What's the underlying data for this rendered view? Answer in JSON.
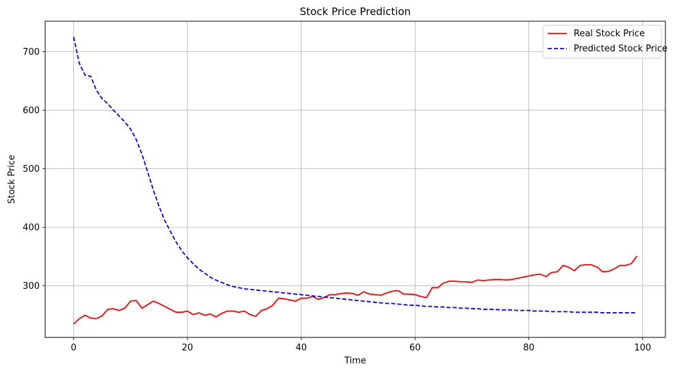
{
  "chart_data": {
    "type": "line",
    "title": "Stock Price Prediction",
    "xlabel": "Time",
    "ylabel": "Stock Price",
    "xlim": [
      -5.0,
      104.0
    ],
    "ylim": [
      212,
      752
    ],
    "xticks": [
      0,
      20,
      40,
      60,
      80,
      100
    ],
    "yticks": [
      300,
      400,
      500,
      600,
      700
    ],
    "grid": true,
    "legend_position": "top-right",
    "x": [
      0,
      1,
      2,
      3,
      4,
      5,
      6,
      7,
      8,
      9,
      10,
      11,
      12,
      13,
      14,
      15,
      16,
      17,
      18,
      19,
      20,
      21,
      22,
      23,
      24,
      25,
      26,
      27,
      28,
      29,
      30,
      31,
      32,
      33,
      34,
      35,
      36,
      37,
      38,
      39,
      40,
      41,
      42,
      43,
      44,
      45,
      46,
      47,
      48,
      49,
      50,
      51,
      52,
      53,
      54,
      55,
      56,
      57,
      58,
      59,
      60,
      61,
      62,
      63,
      64,
      65,
      66,
      67,
      68,
      69,
      70,
      71,
      72,
      73,
      74,
      75,
      76,
      77,
      78,
      79,
      80,
      81,
      82,
      83,
      84,
      85,
      86,
      87,
      88,
      89,
      90,
      91,
      92,
      93,
      94,
      95,
      96,
      97,
      98,
      99
    ],
    "series": [
      {
        "name": "Real Stock Price",
        "color": "#ff0000",
        "style": "solid",
        "values": [
          235,
          244,
          250,
          245,
          244,
          249,
          260,
          261,
          258,
          262,
          274,
          275,
          262,
          268,
          274,
          270,
          265,
          260,
          255,
          255,
          257,
          251,
          254,
          250,
          252,
          247,
          253,
          257,
          257,
          255,
          257,
          251,
          248,
          258,
          261,
          267,
          279,
          278,
          276,
          274,
          279,
          279,
          282,
          277,
          280,
          285,
          285,
          287,
          288,
          287,
          284,
          290,
          286,
          285,
          284,
          288,
          291,
          292,
          286,
          286,
          285,
          282,
          280,
          297,
          297,
          305,
          308,
          308,
          307,
          307,
          306,
          310,
          309,
          310,
          311,
          311,
          310,
          311,
          313,
          315,
          317,
          319,
          320,
          316,
          323,
          324,
          335,
          332,
          326,
          335,
          336,
          336,
          332,
          324,
          325,
          329,
          335,
          335,
          338,
          351
        ]
      },
      {
        "name": "Predicted Stock Price",
        "color": "#0000ff",
        "style": "dashed",
        "values": [
          725,
          680,
          660,
          658,
          634,
          620,
          611,
          600,
          590,
          580,
          568,
          550,
          525,
          495,
          464,
          436,
          412,
          393,
          375,
          360,
          348,
          338,
          329,
          322,
          315,
          310,
          306,
          302,
          299,
          297,
          295,
          294,
          293,
          292,
          291,
          290,
          289,
          288,
          287,
          286,
          285,
          284,
          283,
          282,
          281,
          280,
          279,
          278,
          277,
          276,
          275,
          274,
          273,
          272,
          271,
          270,
          270,
          269,
          268,
          267,
          267,
          266,
          265,
          265,
          264,
          264,
          263,
          263,
          262,
          262,
          261,
          261,
          260,
          260,
          260,
          259,
          259,
          259,
          258,
          258,
          258,
          257,
          257,
          257,
          256,
          256,
          256,
          256,
          255,
          255,
          255,
          255,
          255,
          254,
          254,
          254,
          254,
          254,
          254,
          254
        ]
      }
    ]
  }
}
